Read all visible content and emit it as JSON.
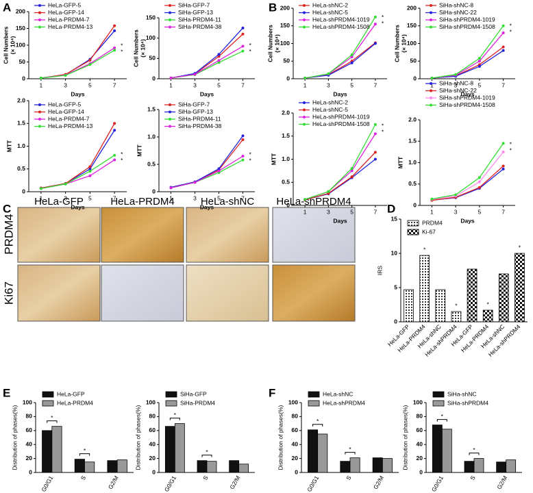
{
  "panel_labels": [
    "A",
    "B",
    "C",
    "D",
    "E",
    "F"
  ],
  "images": {
    "columns": [
      "HeLa-GFP",
      "HeLa-PRDM4",
      "HeLa-shNC",
      "HeLa-shPRDM4"
    ],
    "rows": [
      "PRDM4",
      "Ki67"
    ]
  },
  "chart_data": [
    {
      "type": "line",
      "x": [
        1,
        3,
        5,
        7
      ],
      "xlim": [
        0,
        8
      ],
      "xticks": [
        1,
        3,
        5,
        7
      ],
      "xlabel": "Days",
      "ylabel": [
        "Cell Numbers",
        "(× 10⁴)"
      ],
      "ylim": [
        0,
        200
      ],
      "yticks": [
        0,
        50,
        100,
        150,
        200
      ],
      "legend": "upper left",
      "annotations": [
        "*",
        "*"
      ],
      "series": [
        {
          "name": "HeLa-GFP-5",
          "color": "#2222dd",
          "values": [
            2,
            12,
            58,
            143
          ]
        },
        {
          "name": "HeLa-GFP-14",
          "color": "#dd2222",
          "values": [
            2,
            13,
            55,
            158
          ]
        },
        {
          "name": "HeLa-PRDM4-7",
          "color": "#dd22dd",
          "values": [
            2,
            11,
            45,
            92
          ]
        },
        {
          "name": "HeLa-PRDM4-13",
          "color": "#33dd33",
          "values": [
            2,
            10,
            42,
            85
          ]
        }
      ]
    },
    {
      "type": "line",
      "x": [
        1,
        3,
        5,
        7
      ],
      "xlim": [
        0,
        8
      ],
      "xticks": [
        1,
        3,
        5,
        7
      ],
      "xlabel": "Days",
      "ylabel": [
        "Cell Numbers",
        "(× 10⁴)"
      ],
      "ylim": [
        0,
        150
      ],
      "yticks": [
        0,
        50,
        100,
        150
      ],
      "legend": "upper left",
      "annotations": [
        "*",
        "*"
      ],
      "series": [
        {
          "name": "SiHa-GFP-7",
          "color": "#dd2222",
          "values": [
            2,
            12,
            55,
            110
          ]
        },
        {
          "name": "SiHa-GFP-13",
          "color": "#2222dd",
          "values": [
            2,
            13,
            60,
            125
          ]
        },
        {
          "name": "SiHa-PRDM4-11",
          "color": "#33dd33",
          "values": [
            2,
            10,
            40,
            68
          ]
        },
        {
          "name": "SiHa-PRDM4-38",
          "color": "#dd22dd",
          "values": [
            2,
            11,
            45,
            80
          ]
        }
      ]
    },
    {
      "type": "line",
      "x": [
        1,
        3,
        5,
        7
      ],
      "xlim": [
        0,
        8
      ],
      "xticks": [
        1,
        3,
        5,
        7
      ],
      "xlabel": "Days",
      "ylabel": [
        "MTT"
      ],
      "ylim": [
        0,
        2
      ],
      "yticks": [
        0,
        0.5,
        {
          "value": 1,
          "label": "1.0"
        },
        1.5,
        {
          "value": 2,
          "label": "2.0"
        }
      ],
      "legend": "upper left",
      "annotations": [
        "*",
        "*"
      ],
      "series": [
        {
          "name": "HeLa-GFP-5",
          "color": "#2222dd",
          "values": [
            0.08,
            0.18,
            0.5,
            1.35
          ]
        },
        {
          "name": "HeLa-GFP-14",
          "color": "#dd2222",
          "values": [
            0.08,
            0.18,
            0.55,
            1.5
          ]
        },
        {
          "name": "HeLa-PRDM4-7",
          "color": "#dd22dd",
          "values": [
            0.07,
            0.17,
            0.35,
            0.7
          ]
        },
        {
          "name": "HeLa-PRDM4-13",
          "color": "#33dd33",
          "values": [
            0.07,
            0.17,
            0.45,
            0.8
          ]
        }
      ]
    },
    {
      "type": "line",
      "x": [
        1,
        3,
        5,
        7
      ],
      "xlim": [
        0,
        8
      ],
      "xticks": [
        1,
        3,
        5,
        7
      ],
      "xlabel": "Days",
      "ylabel": [
        "MTT"
      ],
      "ylim": [
        0,
        1.5
      ],
      "yticks": [
        0,
        0.5,
        {
          "value": 1,
          "label": "1.0"
        },
        1.5
      ],
      "legend": "upper left",
      "annotations": [
        "*",
        "*"
      ],
      "series": [
        {
          "name": "SiHa-GFP-7",
          "color": "#dd2222",
          "values": [
            0.08,
            0.18,
            0.4,
            0.95
          ]
        },
        {
          "name": "SiHa-GFP-13",
          "color": "#2222dd",
          "values": [
            0.08,
            0.18,
            0.42,
            1.02
          ]
        },
        {
          "name": "SiHa-PRDM4-11",
          "color": "#33dd33",
          "values": [
            0.07,
            0.17,
            0.35,
            0.58
          ]
        },
        {
          "name": "SiHa-PRDM4-38",
          "color": "#dd22dd",
          "values": [
            0.07,
            0.17,
            0.38,
            0.65
          ]
        }
      ]
    },
    {
      "type": "line",
      "x": [
        1,
        3,
        5,
        7
      ],
      "xlim": [
        0,
        8
      ],
      "xticks": [
        1,
        3,
        5,
        7
      ],
      "xlabel": "Days",
      "ylabel": [
        "Cell Numbers",
        "(× 10⁴)"
      ],
      "ylim": [
        0,
        200
      ],
      "yticks": [
        0,
        50,
        100,
        150,
        200
      ],
      "legend": "upper left",
      "annotations": [
        "*",
        "*"
      ],
      "series": [
        {
          "name": "HeLa-shNC-2",
          "color": "#dd2222",
          "values": [
            2,
            11,
            50,
            102
          ]
        },
        {
          "name": "HeLa-shNC-5",
          "color": "#2222dd",
          "values": [
            2,
            10,
            45,
            100
          ]
        },
        {
          "name": "HeLa-shPRDM4-1019",
          "color": "#dd22dd",
          "values": [
            2,
            13,
            62,
            155
          ]
        },
        {
          "name": "HeLa-shPRDM4-1508",
          "color": "#33dd33",
          "values": [
            2,
            14,
            68,
            175
          ]
        }
      ]
    },
    {
      "type": "line",
      "x": [
        1,
        3,
        5,
        7
      ],
      "xlim": [
        0,
        8
      ],
      "xticks": [
        1,
        3,
        5,
        7
      ],
      "xlabel": "Days",
      "ylabel": [
        "Cell Numbers",
        "(× 10⁴)"
      ],
      "ylim": [
        0,
        200
      ],
      "yticks": [
        0,
        50,
        100,
        150,
        200
      ],
      "legend": "upper left",
      "annotations": [
        "*",
        "*"
      ],
      "series": [
        {
          "name": "SiHa-shNC-8",
          "color": "#dd2222",
          "values": [
            2,
            8,
            40,
            90
          ]
        },
        {
          "name": "SiHa-shNC-22",
          "color": "#2222dd",
          "values": [
            2,
            7,
            35,
            80
          ]
        },
        {
          "name": "SiHa-shPRDM4-1019",
          "color": "#dd22dd",
          "values": [
            2,
            10,
            50,
            130
          ]
        },
        {
          "name": "SiHa-shPRDM4-1508",
          "color": "#33dd33",
          "values": [
            2,
            12,
            58,
            150
          ]
        }
      ]
    },
    {
      "type": "line",
      "x": [
        1,
        3,
        5,
        7
      ],
      "xlim": [
        0,
        8
      ],
      "xticks": [
        1,
        3,
        5,
        7
      ],
      "xlabel": "Days",
      "ylabel": [
        "MTT"
      ],
      "ylim": [
        0,
        2
      ],
      "yticks": [
        0,
        0.5,
        {
          "value": 1,
          "label": "1.0"
        },
        1.5,
        {
          "value": 2,
          "label": "2.0"
        }
      ],
      "legend": "upper left",
      "annotations": [
        "*",
        "*"
      ],
      "series": [
        {
          "name": "HeLa-shNC-2",
          "color": "#2222dd",
          "values": [
            0.12,
            0.25,
            0.6,
            1.0
          ]
        },
        {
          "name": "HeLa-shNC-5",
          "color": "#dd2222",
          "values": [
            0.12,
            0.26,
            0.62,
            1.15
          ]
        },
        {
          "name": "HeLa-shPRDM4-1019",
          "color": "#dd22dd",
          "values": [
            0.13,
            0.3,
            0.75,
            1.55
          ]
        },
        {
          "name": "HeLa-shPRDM4-1508",
          "color": "#33dd33",
          "values": [
            0.13,
            0.3,
            0.8,
            1.75
          ]
        }
      ]
    },
    {
      "type": "line",
      "x": [
        1,
        3,
        5,
        7
      ],
      "xlim": [
        0,
        8
      ],
      "xticks": [
        1,
        3,
        5,
        7
      ],
      "xlabel": "Days",
      "ylabel": [
        "MTT"
      ],
      "ylim": [
        0,
        2
      ],
      "yticks": [
        0,
        0.5,
        {
          "value": 1,
          "label": "1.0"
        },
        1.5,
        {
          "value": 2,
          "label": "2.0"
        }
      ],
      "legend": "upper left",
      "annotations": [
        "*",
        "*"
      ],
      "series": [
        {
          "name": "SiHa-shNC-8",
          "color": "#2222dd",
          "values": [
            0.12,
            0.18,
            0.4,
            0.85
          ]
        },
        {
          "name": "SiHa-shNC-22",
          "color": "#dd2222",
          "values": [
            0.12,
            0.19,
            0.42,
            0.92
          ]
        },
        {
          "name": "SiHa-shPRDM4-1019",
          "color": "#ff88ee",
          "values": [
            0.14,
            0.22,
            0.55,
            1.25
          ]
        },
        {
          "name": "SiHa-shPRDM4-1508",
          "color": "#33dd33",
          "values": [
            0.15,
            0.25,
            0.65,
            1.45
          ]
        }
      ]
    },
    {
      "type": "bar",
      "categories": [
        "HeLa-GFP",
        "HeLa-PRDM4",
        "HeLa-shNC",
        "HeLa-shPRDM4",
        "HeLa-GFP",
        "HeLa-PRDM4",
        "HeLa-shNC",
        "HeLa-shPRDM4"
      ],
      "ylabel": "IRS",
      "ylim": [
        0,
        15
      ],
      "yticks": [
        0,
        5,
        10,
        15
      ],
      "legend": "upper left",
      "annotations": [
        null,
        "*",
        null,
        "*",
        null,
        "*",
        null,
        "*"
      ],
      "series": [
        {
          "name": "PRDM4",
          "pattern": "hatch",
          "values": [
            4.7,
            9.7,
            4.7,
            1.5,
            null,
            null,
            null,
            null
          ]
        },
        {
          "name": "Ki-67",
          "pattern": "checker",
          "values": [
            null,
            null,
            null,
            null,
            7.7,
            1.7,
            7,
            10
          ]
        }
      ]
    },
    {
      "type": "bar",
      "categories": [
        "G0/G1",
        "S",
        "G2/M"
      ],
      "ylabel": "Distribution of phases(%)",
      "ylim": [
        0,
        100
      ],
      "yticks": [
        0,
        20,
        40,
        60,
        80,
        100
      ],
      "legend": "upper left",
      "annotations": [
        "*",
        "*",
        null
      ],
      "series": [
        {
          "name": "HeLa-GFP",
          "color": "#111111",
          "values": [
            60,
            19,
            17
          ]
        },
        {
          "name": "HeLa-PRDM4",
          "color": "#999999",
          "values": [
            66,
            15,
            18
          ]
        }
      ]
    },
    {
      "type": "bar",
      "categories": [
        "G0/G1",
        "S",
        "G2/M"
      ],
      "ylabel": "Distribution of phases(%)",
      "ylim": [
        0,
        100
      ],
      "yticks": [
        0,
        20,
        40,
        60,
        80,
        100
      ],
      "legend": "upper left",
      "annotations": [
        "*",
        "*",
        null
      ],
      "series": [
        {
          "name": "SiHa-GFP",
          "color": "#111111",
          "values": [
            66,
            17,
            17
          ]
        },
        {
          "name": "SiHa-PRDM4",
          "color": "#999999",
          "values": [
            70,
            16,
            12
          ]
        }
      ]
    },
    {
      "type": "bar",
      "categories": [
        "G0/G1",
        "S",
        "G2/M"
      ],
      "ylabel": "Distribution of phases(%)",
      "ylim": [
        0,
        100
      ],
      "yticks": [
        0,
        20,
        40,
        60,
        80,
        100
      ],
      "legend": "upper left",
      "annotations": [
        "*",
        "*",
        null
      ],
      "series": [
        {
          "name": "HeLa-shNC",
          "color": "#111111",
          "values": [
            61,
            16,
            21
          ]
        },
        {
          "name": "HeLa-shPRDM4",
          "color": "#999999",
          "values": [
            55,
            21,
            20
          ]
        }
      ]
    },
    {
      "type": "bar",
      "categories": [
        "G0/G1",
        "S",
        "G2/M"
      ],
      "ylabel": "Distribution of phases(%)",
      "ylim": [
        0,
        100
      ],
      "yticks": [
        0,
        20,
        40,
        60,
        80,
        100
      ],
      "legend": "upper left",
      "annotations": [
        "*",
        "*",
        null
      ],
      "series": [
        {
          "name": "SiHa-shNC",
          "color": "#111111",
          "values": [
            68,
            16,
            15
          ]
        },
        {
          "name": "SiHa-shPRDM4",
          "color": "#999999",
          "values": [
            62,
            20,
            18
          ]
        }
      ]
    }
  ]
}
